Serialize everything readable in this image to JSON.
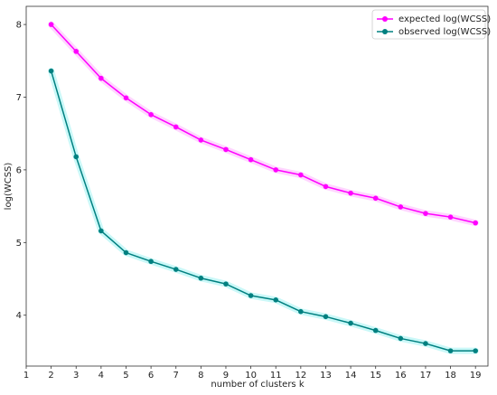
{
  "chart_data": {
    "type": "line",
    "xlabel": "number of clusters k",
    "ylabel": "log(WCSS)",
    "xlim": [
      1,
      19.5
    ],
    "ylim": [
      3.3,
      8.25
    ],
    "x_ticks": [
      1,
      2,
      3,
      4,
      5,
      6,
      7,
      8,
      9,
      10,
      11,
      12,
      13,
      14,
      15,
      16,
      17,
      18,
      19
    ],
    "y_ticks": [
      4,
      5,
      6,
      7,
      8
    ],
    "grid": false,
    "legend_position": "top-right",
    "x": [
      2,
      3,
      4,
      5,
      6,
      7,
      8,
      9,
      10,
      11,
      12,
      13,
      14,
      15,
      16,
      17,
      18,
      19
    ],
    "series": [
      {
        "name": "expected log(WCSS)",
        "color": "#ff00ff",
        "band_color": "#ffb3ff",
        "values": [
          8.0,
          7.63,
          7.26,
          6.99,
          6.76,
          6.59,
          6.41,
          6.28,
          6.14,
          6.0,
          5.93,
          5.77,
          5.68,
          5.61,
          5.49,
          5.4,
          5.35,
          5.27
        ]
      },
      {
        "name": "observed log(WCSS)",
        "color": "#008080",
        "band_color": "#9ff3f3",
        "values": [
          7.36,
          6.18,
          5.16,
          4.86,
          4.74,
          4.63,
          4.51,
          4.43,
          4.27,
          4.21,
          4.05,
          3.98,
          3.89,
          3.79,
          3.68,
          3.61,
          3.51,
          3.51
        ]
      }
    ]
  }
}
